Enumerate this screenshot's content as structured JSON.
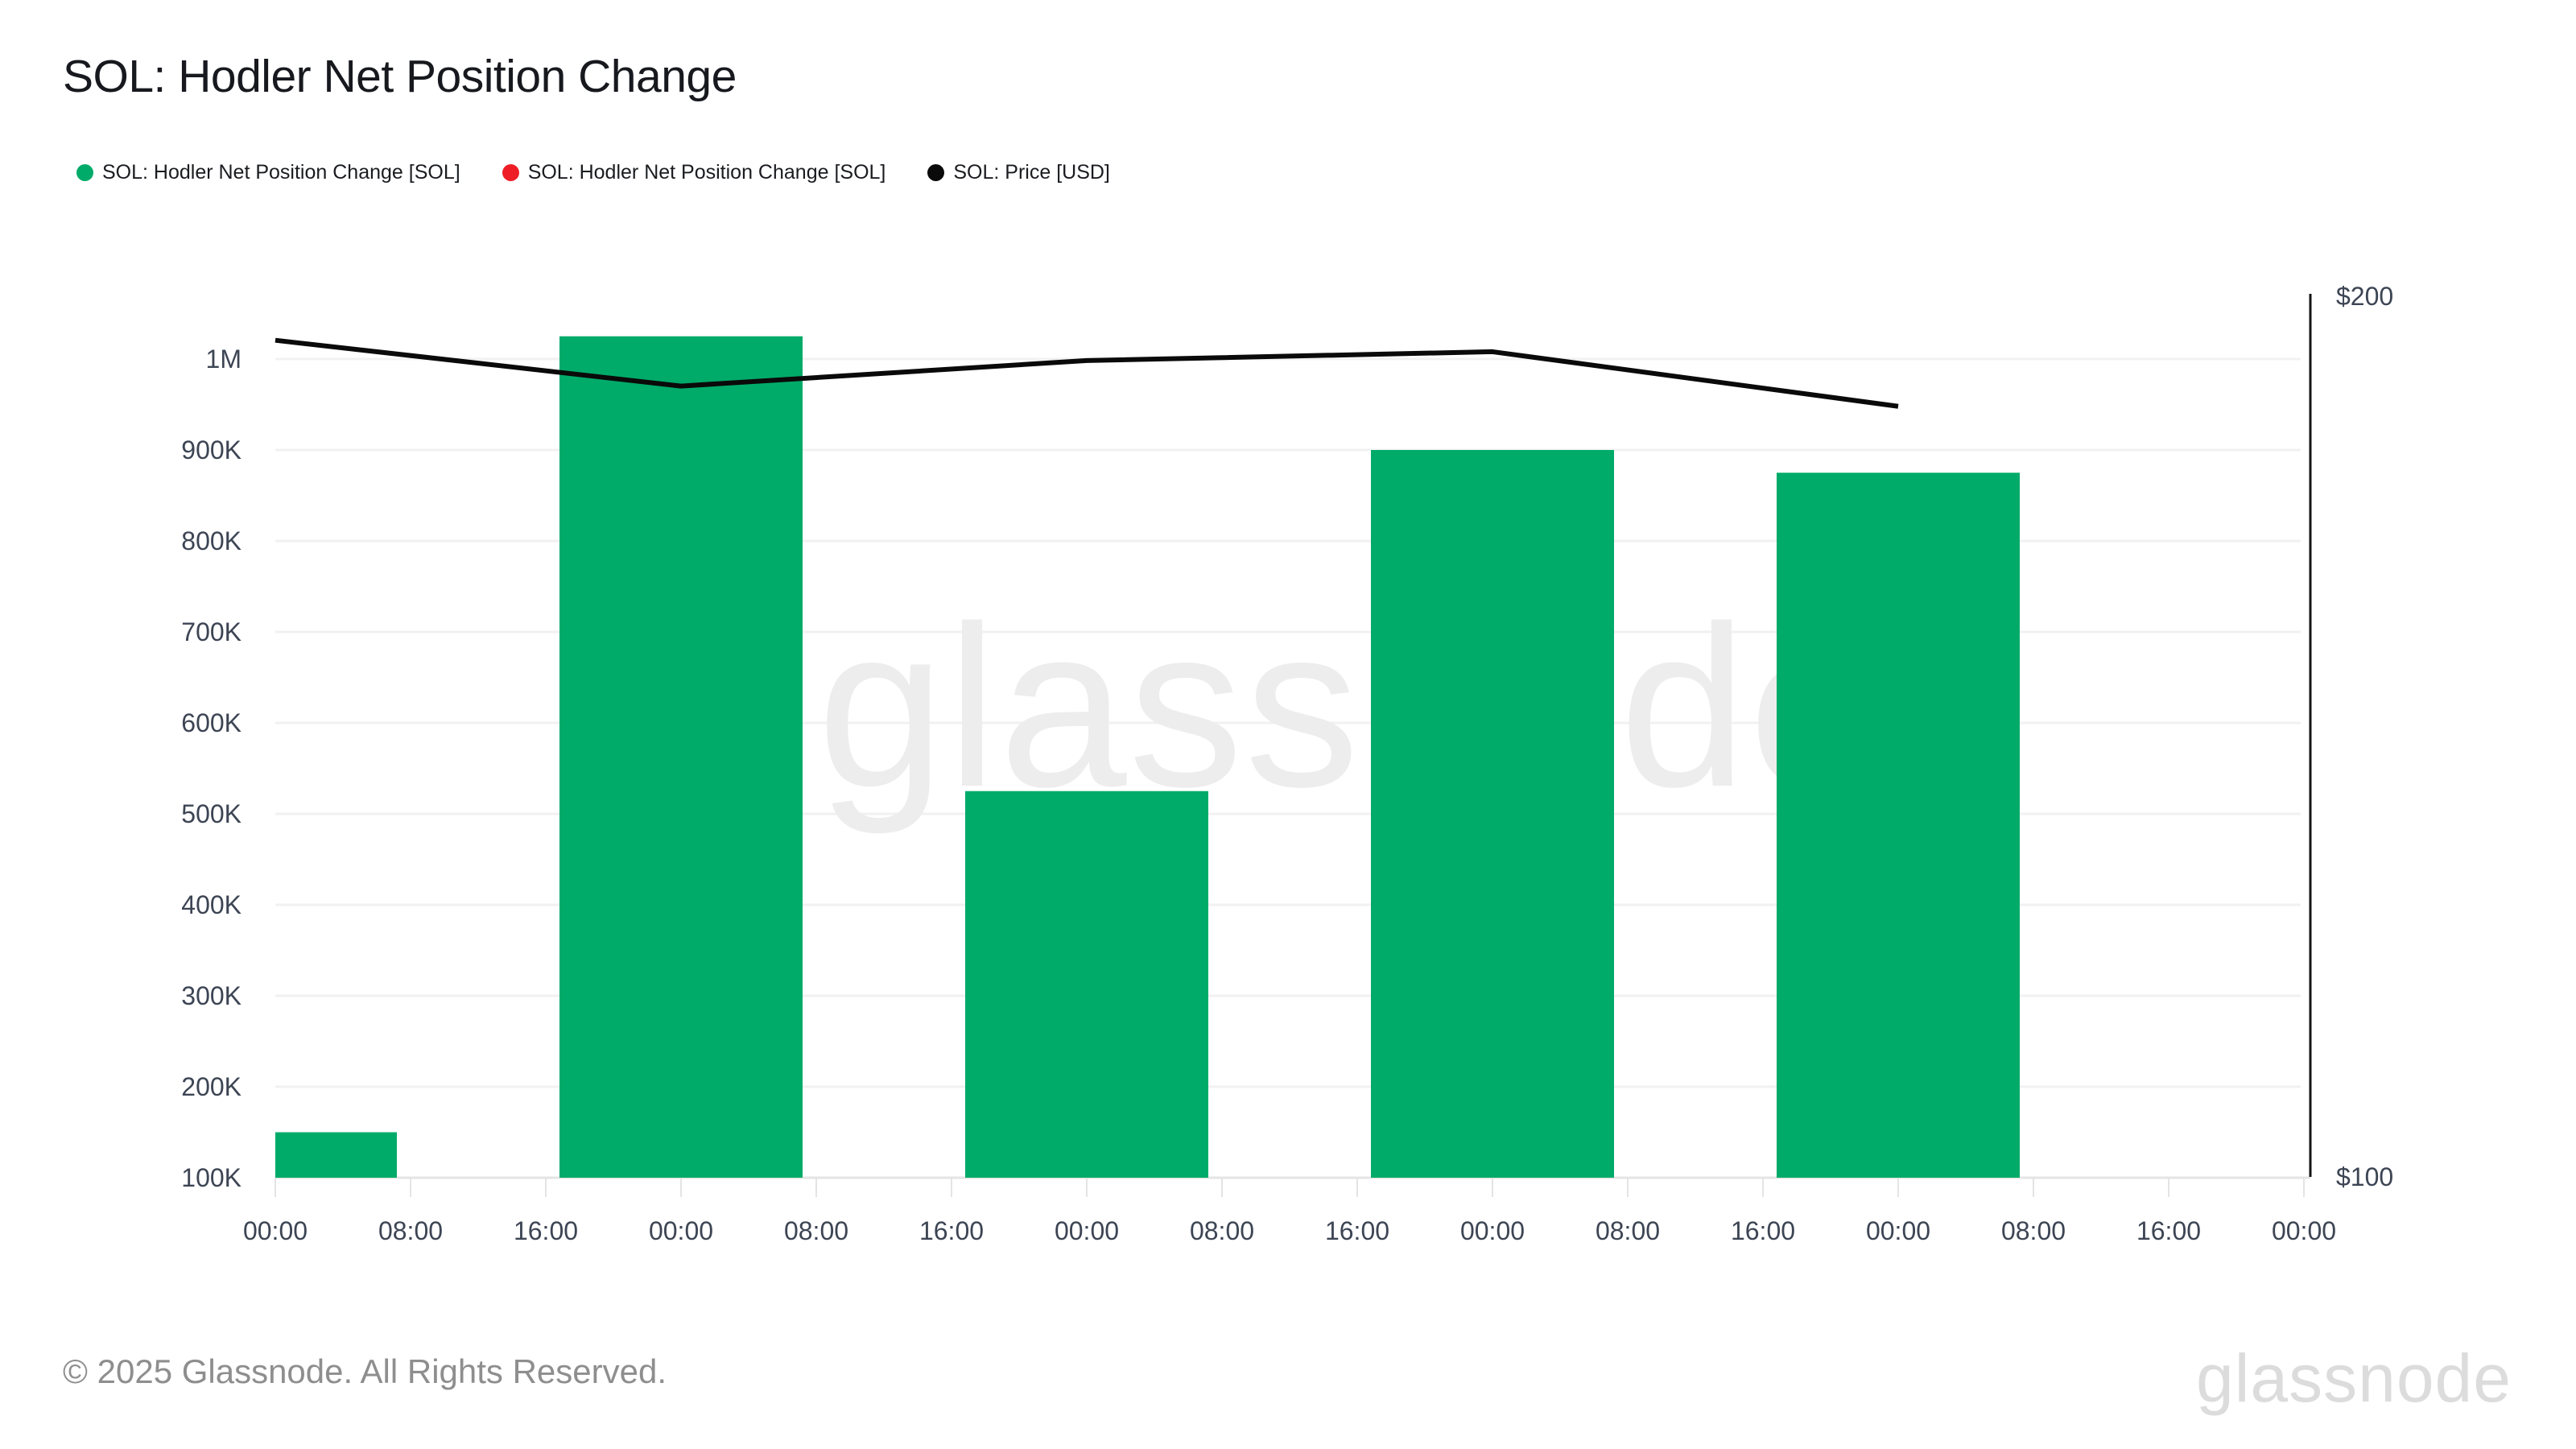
{
  "page": {
    "footer": "© 2025 Glassnode. All Rights Reserved.",
    "logo": "glassnode",
    "watermark": "glassnode"
  },
  "header": {
    "title": "SOL: Hodler Net Position Change"
  },
  "legend": {
    "items": [
      {
        "label": "SOL: Hodler Net Position Change [SOL]",
        "color": "#00ab69"
      },
      {
        "label": "SOL: Hodler Net Position Change [SOL]",
        "color": "#ee1d25"
      },
      {
        "label": "SOL: Price [USD]",
        "color": "#0a0a0a"
      }
    ]
  },
  "chart_data": {
    "type": "bar",
    "title": "SOL: Hodler Net Position Change",
    "x_tick_labels": [
      "00:00",
      "08:00",
      "16:00",
      "00:00",
      "08:00",
      "16:00",
      "00:00",
      "08:00",
      "16:00",
      "00:00",
      "08:00",
      "16:00",
      "00:00",
      "08:00",
      "16:00",
      "00:00"
    ],
    "x_tick_interval_hours": 8,
    "series": [
      {
        "name": "SOL: Hodler Net Position Change [SOL]",
        "type": "bar",
        "color": "#00ab69",
        "unit": "SOL",
        "day_index": [
          0,
          1,
          2,
          3,
          4
        ],
        "values": [
          150000,
          1025000,
          525000,
          900000,
          875000
        ]
      },
      {
        "name": "SOL: Hodler Net Position Change [SOL]",
        "type": "bar",
        "color": "#ee1d25",
        "unit": "SOL",
        "day_index": [],
        "values": []
      },
      {
        "name": "SOL: Price [USD]",
        "type": "line",
        "color": "#0a0a0a",
        "unit": "USD",
        "day_index": [
          0,
          1,
          2,
          3,
          4
        ],
        "values": [
          195.0,
          189.8,
          192.7,
          193.7,
          187.5
        ]
      }
    ],
    "left_axis": {
      "tick_labels": [
        "1M",
        "900K",
        "800K",
        "700K",
        "600K",
        "500K",
        "400K",
        "300K",
        "200K",
        "100K"
      ],
      "tick_values": [
        1000000,
        900000,
        800000,
        700000,
        600000,
        500000,
        400000,
        300000,
        200000,
        100000
      ],
      "min": 100000,
      "max": 1100000
    },
    "right_axis": {
      "tick_labels": [
        "$200",
        "$100"
      ],
      "tick_values": [
        200,
        100
      ],
      "min": 100,
      "max": 200
    },
    "grid": "horizontal",
    "legend_position": "top-left"
  }
}
